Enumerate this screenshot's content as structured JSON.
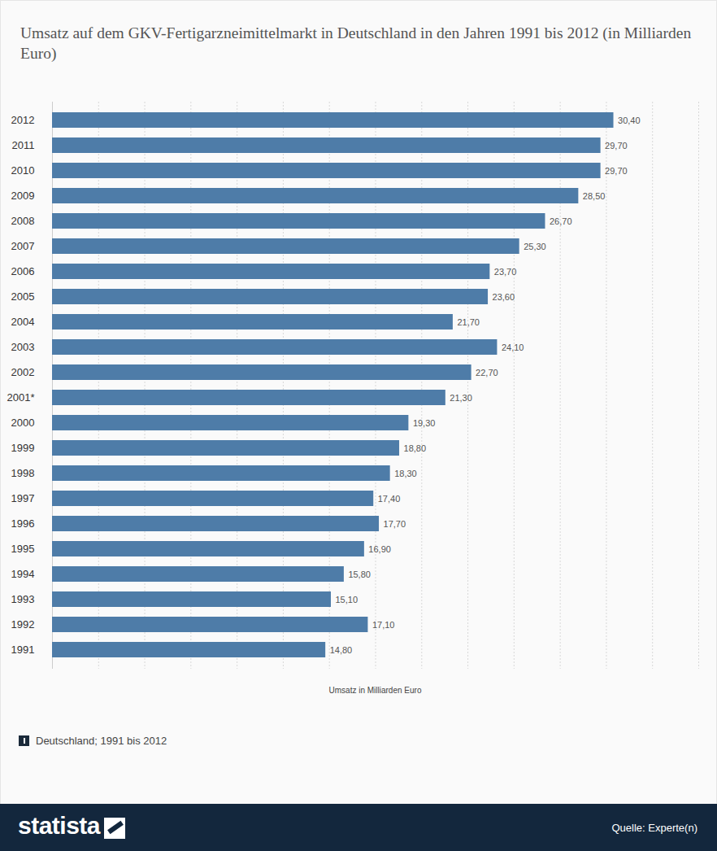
{
  "chart_data": {
    "type": "bar",
    "orientation": "horizontal",
    "title": "Umsatz auf dem GKV-Fertigarzneimittelmarkt in Deutschland in den Jahren 1991 bis 2012 (in Milliarden Euro)",
    "x_label": "Umsatz in Milliarden Euro",
    "note": "Deutschland; 1991 bis 2012",
    "source": "Quelle: Experte(n)",
    "brand": "statista",
    "categories": [
      "2012",
      "2011",
      "2010",
      "2009",
      "2008",
      "2007",
      "2006",
      "2005",
      "2004",
      "2003",
      "2002",
      "2001*",
      "2000",
      "1999",
      "1998",
      "1997",
      "1996",
      "1995",
      "1994",
      "1993",
      "1992",
      "1991"
    ],
    "values": [
      30.4,
      29.7,
      29.7,
      28.5,
      26.7,
      25.3,
      23.7,
      23.6,
      21.7,
      24.1,
      22.7,
      21.3,
      19.3,
      18.8,
      18.3,
      17.4,
      17.7,
      16.9,
      15.8,
      15.1,
      17.1,
      14.8
    ],
    "value_labels": [
      "30,40",
      "29,70",
      "29,70",
      "28,50",
      "26,70",
      "25,30",
      "23,70",
      "23,60",
      "21,70",
      "24,10",
      "22,70",
      "21,30",
      "19,30",
      "18,80",
      "18,30",
      "17,40",
      "17,70",
      "16,90",
      "15,80",
      "15,10",
      "17,10",
      "14,80"
    ],
    "color": "#4e7ca8",
    "xlim": [
      0,
      35
    ],
    "xticks": [
      0,
      2.5,
      5,
      7.5,
      10,
      12.5,
      15,
      17.5,
      20,
      22.5,
      25,
      27.5,
      30,
      32.5,
      35
    ],
    "grid": true,
    "data_labels": true,
    "tick_labels": "y"
  }
}
